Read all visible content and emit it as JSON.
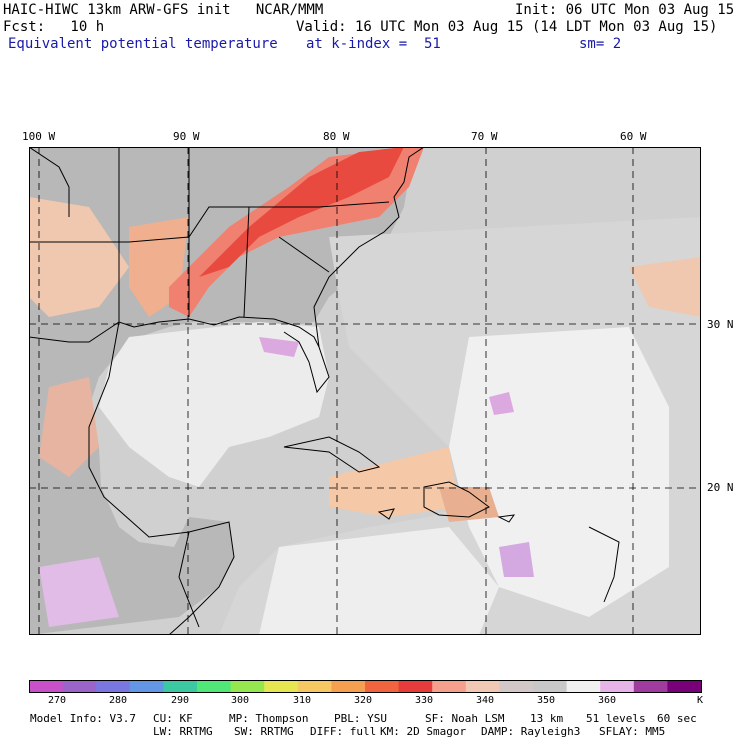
{
  "header": {
    "line1_left": "HAIC-HIWC 13km ARW-GFS init   NCAR/MMM",
    "line1_right": "Init: 06 UTC Mon 03 Aug 15",
    "line2_left": "Fcst:   10 h",
    "line2_right": "Valid: 16 UTC Mon 03 Aug 15 (14 LDT Mon 03 Aug 15)",
    "field_name": "Equivalent potential temperature",
    "level": "at k-index =  51",
    "smoothing": "sm= 2"
  },
  "map": {
    "lon_labels": [
      "100 W",
      "90 W",
      "80 W",
      "70 W",
      "60 W"
    ],
    "lat_labels": [
      "30 N",
      "20 N"
    ],
    "colors": {
      "land_gray": "#b4b4b4",
      "sea_light": "#dcdcdc",
      "white_area": "#f2f2f2",
      "warm": "#f5c8a8",
      "warmer": "#f0a078",
      "hot": "#f06050",
      "hottest": "#e83030",
      "cool_purple": "#d8a8e0"
    }
  },
  "colorbar": {
    "labels": [
      "270",
      "280",
      "290",
      "300",
      "310",
      "320",
      "330",
      "340",
      "350",
      "360"
    ],
    "unit": "K",
    "colors": [
      "#c850c8",
      "#9a64c8",
      "#7a78e0",
      "#6496e6",
      "#3cc8a0",
      "#50e678",
      "#96e650",
      "#e6e650",
      "#f5c864",
      "#f5a050",
      "#f06440",
      "#e83c3c",
      "#f5a08c",
      "#f0c8b4",
      "#d2c8c8",
      "#c8c8c8",
      "#f0f0f0",
      "#e6b4e6",
      "#a03ca0",
      "#780078"
    ]
  },
  "footer": {
    "line1": [
      "Model Info: V3.7",
      "CU: KF",
      "MP: Thompson",
      "PBL: YSU",
      "SF: Noah LSM",
      "13 km",
      "51 levels",
      "60 sec"
    ],
    "line2": [
      "LW: RRTMG",
      "SW: RRTMG",
      "DIFF: full",
      "KM: 2D Smagor",
      "DAMP: Rayleigh3",
      "SFLAY: MM5"
    ]
  }
}
